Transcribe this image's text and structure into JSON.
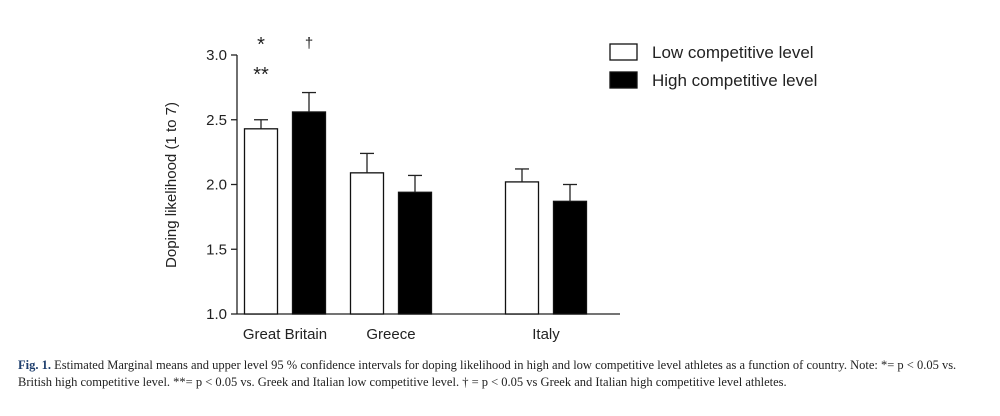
{
  "chart_data": {
    "type": "bar",
    "title": "",
    "xlabel": "",
    "ylabel": "Doping likelihood (1 to 7)",
    "ylim": [
      1.0,
      3.0
    ],
    "yticks": [
      "1.0",
      "1.5",
      "2.0",
      "2.5",
      "3.0"
    ],
    "ytick_values": [
      1.0,
      1.5,
      2.0,
      2.5,
      3.0
    ],
    "categories": [
      "Great Britain",
      "Greece",
      "Italy"
    ],
    "series": [
      {
        "name": "Low competitive level",
        "fill": "#ffffff",
        "values": [
          2.43,
          2.09,
          2.02
        ],
        "ci_upper": [
          2.5,
          2.24,
          2.12
        ]
      },
      {
        "name": "High competitive level",
        "fill": "#000000",
        "values": [
          2.56,
          1.94,
          1.87
        ],
        "ci_upper": [
          2.71,
          2.07,
          2.0
        ]
      }
    ],
    "annotations": [
      {
        "text": "*",
        "category": "Great Britain",
        "series": 0
      },
      {
        "text": "**",
        "category": "Great Britain",
        "series": 0
      },
      {
        "text": "†",
        "category": "Great Britain",
        "series": 1
      }
    ],
    "legend_position": "top-right",
    "grid": false
  },
  "caption": {
    "label": "Fig. 1.",
    "text": "Estimated Marginal means and upper level 95 % confidence intervals for doping likelihood in high and low competitive level athletes as a function of country. Note: *= p < 0.05 vs. British high competitive level. **= p < 0.05 vs. Greek and Italian low competitive level. † = p < 0.05 vs Greek and Italian high competitive level athletes."
  }
}
